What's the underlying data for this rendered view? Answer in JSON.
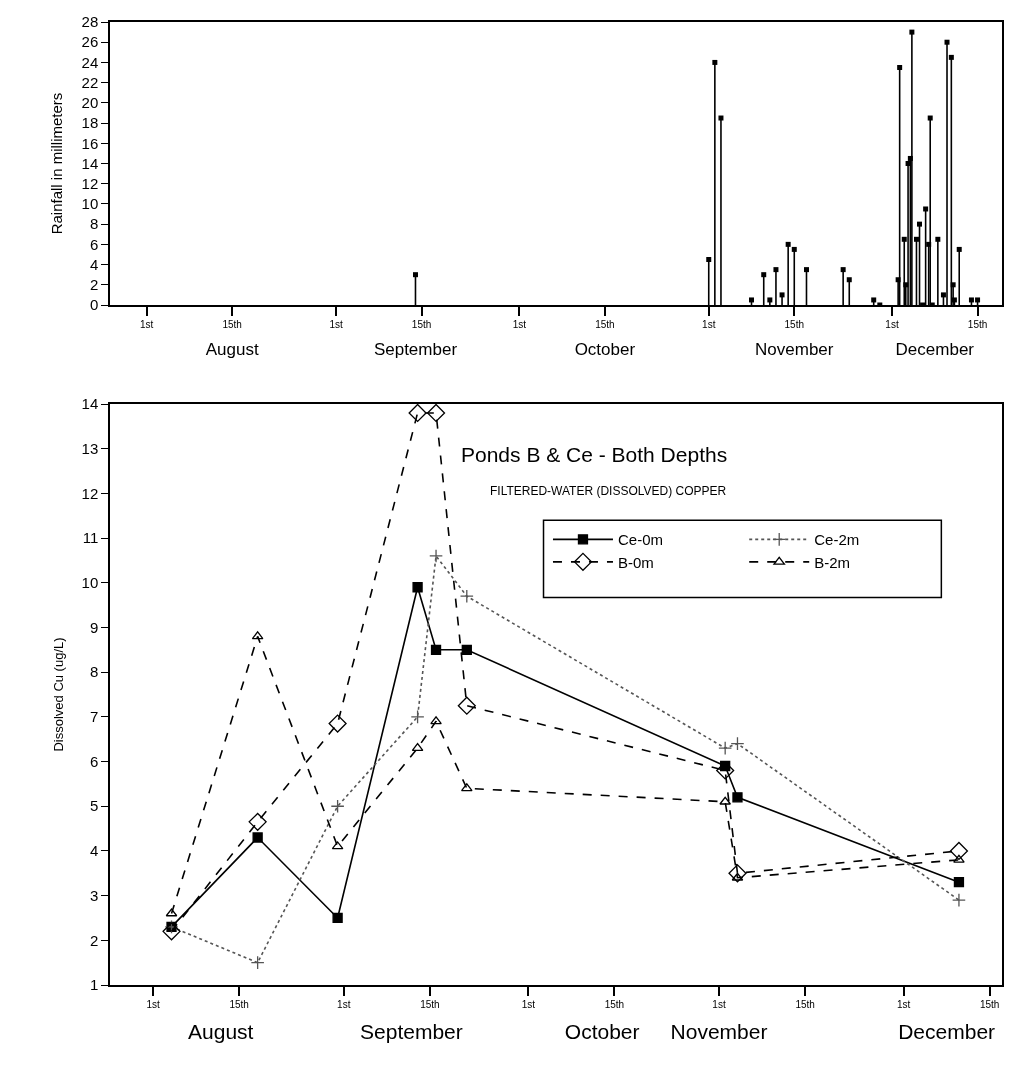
{
  "chart_data": [
    {
      "type": "lollipop",
      "ylabel": "Rainfall in millimeters",
      "color": "#000000",
      "marker": "square",
      "x": [
        "--09-14",
        "--11-01",
        "--11-02",
        "--11-03",
        "--11-08",
        "--11-10",
        "--11-11",
        "--11-12",
        "--11-13",
        "--11-14",
        "--11-15",
        "--11-17",
        "--11-23",
        "--11-24",
        "--11-28",
        "--11-29",
        "--12-02",
        "--12-02T06:00",
        "--12-03",
        "--12-03T06:00",
        "--12-03T15:00",
        "--12-04",
        "--12-04T06:00",
        "--12-05",
        "--12-05T12:00",
        "--12-06",
        "--12-06T12:00",
        "--12-07",
        "--12-07T06:00",
        "--12-07T14:00",
        "--12-08T12:00",
        "--12-09T10:00",
        "--12-10",
        "--12-10T17:00",
        "--12-11",
        "--12-11T05:00",
        "--12-12",
        "--12-14",
        "--12-15"
      ],
      "values": [
        3,
        4.5,
        24,
        18.5,
        0.5,
        3,
        0.5,
        3.5,
        1,
        6,
        5.5,
        3.5,
        3.5,
        2.5,
        0.5,
        0,
        2.5,
        23.5,
        6.5,
        2,
        14,
        14.5,
        27,
        6.5,
        8,
        0,
        9.5,
        6,
        18.5,
        0,
        6.5,
        1,
        26,
        24.5,
        2,
        0.5,
        5.5,
        0.5,
        0.5
      ],
      "xlim": [
        "--07-26",
        "--12-19"
      ],
      "xticks": [
        {
          "value": "--08-01",
          "label": "1st"
        },
        {
          "value": "--08-15",
          "label": "15th"
        },
        {
          "value": "--09-01",
          "label": "1st"
        },
        {
          "value": "--09-15",
          "label": "15th"
        },
        {
          "value": "--10-01",
          "label": "1st"
        },
        {
          "value": "--10-15",
          "label": "15th"
        },
        {
          "value": "--11-01",
          "label": "1st"
        },
        {
          "value": "--11-15",
          "label": "15th"
        },
        {
          "value": "--12-01",
          "label": "1st"
        },
        {
          "value": "--12-15",
          "label": "15th"
        }
      ],
      "x2lim": [
        "--07-26",
        "--12-19"
      ],
      "x2ticks": [
        {
          "value": "--08-15",
          "label": "August"
        },
        {
          "value": "--09-14",
          "label": "September"
        },
        {
          "value": "--10-15",
          "label": "October"
        },
        {
          "value": "--11-15",
          "label": "November"
        },
        {
          "value": "--12-08",
          "label": "December"
        }
      ],
      "ylim": [
        0,
        28
      ],
      "yticks": [
        0,
        2,
        4,
        6,
        8,
        10,
        12,
        14,
        16,
        18,
        20,
        22,
        24,
        26,
        28
      ]
    },
    {
      "type": "line",
      "title": "Ponds B & Ce - Both Depths",
      "subtitle": "FILTERED-WATER (DISSOLVED) COPPER",
      "ylabel": "Dissolved Cu (ug/L)",
      "legend": "top right",
      "x": [
        "--08-04",
        "--08-18",
        "--08-31",
        "--09-13",
        "--09-16",
        "--09-21",
        "--11-02",
        "--11-04",
        "--12-10"
      ],
      "series": [
        {
          "name": "Ce-0m",
          "color": "#000000",
          "marker": "square",
          "line_style": "solid",
          "values": [
            2.3,
            4.3,
            2.5,
            9.9,
            8.5,
            8.5,
            5.9,
            5.2,
            3.3
          ]
        },
        {
          "name": "Ce-2m",
          "color": "#555555",
          "marker": "cross",
          "line_style": "dotted",
          "values": [
            2.3,
            1.5,
            5.0,
            7.0,
            10.6,
            9.7,
            6.3,
            6.4,
            2.9
          ]
        },
        {
          "name": "B-0m",
          "color": "#000000",
          "marker": "diamond",
          "line_style": "dashed",
          "values": [
            2.2,
            4.65,
            6.85,
            13.8,
            13.8,
            7.25,
            5.8,
            3.5,
            4.0
          ]
        },
        {
          "name": "B-2m",
          "color": "#000000",
          "marker": "triangle",
          "line_style": "dashed",
          "values": [
            2.6,
            8.8,
            4.1,
            6.3,
            6.9,
            5.4,
            5.1,
            3.4,
            3.8
          ]
        }
      ],
      "xlim": [
        "--07-25",
        "--12-17"
      ],
      "xticks": [
        {
          "value": "--08-01",
          "label": "1st"
        },
        {
          "value": "--08-15",
          "label": "15th"
        },
        {
          "value": "--09-01",
          "label": "1st"
        },
        {
          "value": "--09-15",
          "label": "15th"
        },
        {
          "value": "--10-01",
          "label": "1st"
        },
        {
          "value": "--10-15",
          "label": "15th"
        },
        {
          "value": "--11-01",
          "label": "1st"
        },
        {
          "value": "--11-15",
          "label": "15th"
        },
        {
          "value": "--12-01",
          "label": "1st"
        },
        {
          "value": "--12-15",
          "label": "15th"
        }
      ],
      "x2lim": [
        "--07-25",
        "--12-17"
      ],
      "x2ticks": [
        {
          "value": "--08-12",
          "label": "August"
        },
        {
          "value": "--09-12",
          "label": "September"
        },
        {
          "value": "--10-13",
          "label": "October"
        },
        {
          "value": "--11-01",
          "label": "November"
        },
        {
          "value": "--12-08",
          "label": "December"
        }
      ],
      "ylim": [
        1,
        14
      ],
      "yticks": [
        1,
        2,
        3,
        4,
        5,
        6,
        7,
        8,
        9,
        10,
        11,
        12,
        13,
        14
      ]
    }
  ]
}
